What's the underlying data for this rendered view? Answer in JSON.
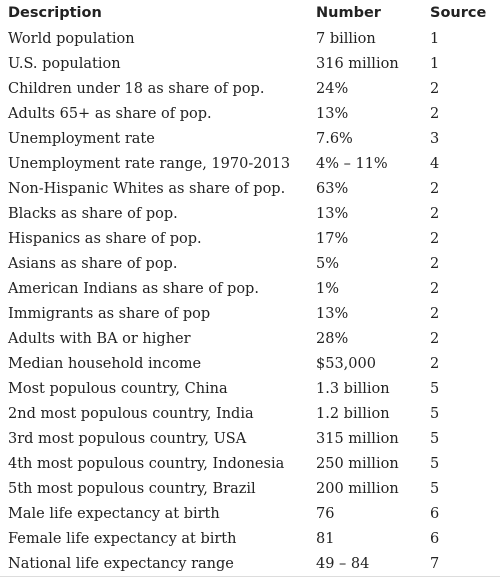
{
  "table": {
    "header": [
      "Description",
      "Number",
      "Source"
    ],
    "rows": [
      [
        "World population",
        "7 billion",
        "1"
      ],
      [
        "U.S. population",
        "316 million",
        "1"
      ],
      [
        "Children under 18 as share of pop.",
        "24%",
        "2"
      ],
      [
        "Adults 65+ as share of pop.",
        "13%",
        "2"
      ],
      [
        "Unemployment rate",
        "7.6%",
        "3"
      ],
      [
        "Unemployment rate range, 1970-2013",
        "4% – 11%",
        "4"
      ],
      [
        "Non-Hispanic Whites as share of pop.",
        "63%",
        "2"
      ],
      [
        "Blacks as share of pop.",
        "13%",
        "2"
      ],
      [
        "Hispanics as share of pop.",
        "17%",
        "2"
      ],
      [
        "Asians as share of pop.",
        "5%",
        "2"
      ],
      [
        "American Indians as share of pop.",
        "1%",
        "2"
      ],
      [
        "Immigrants as share of pop",
        "13%",
        "2"
      ],
      [
        "Adults with BA or higher",
        "28%",
        "2"
      ],
      [
        "Median household income",
        "$53,000",
        "2"
      ],
      [
        "Most populous country, China",
        "1.3 billion",
        "5"
      ],
      [
        "2nd most populous country, India",
        "1.2 billion",
        "5"
      ],
      [
        "3rd most populous country, USA",
        "315 million",
        "5"
      ],
      [
        "4th most populous country, Indonesia",
        "250 million",
        "5"
      ],
      [
        "5th most populous country, Brazil",
        "200 million",
        "5"
      ],
      [
        "Male life expectancy at birth",
        "76",
        "6"
      ],
      [
        "Female life expectancy at birth",
        "81",
        "6"
      ],
      [
        "National life expectancy range",
        "49 – 84",
        "7"
      ]
    ]
  }
}
